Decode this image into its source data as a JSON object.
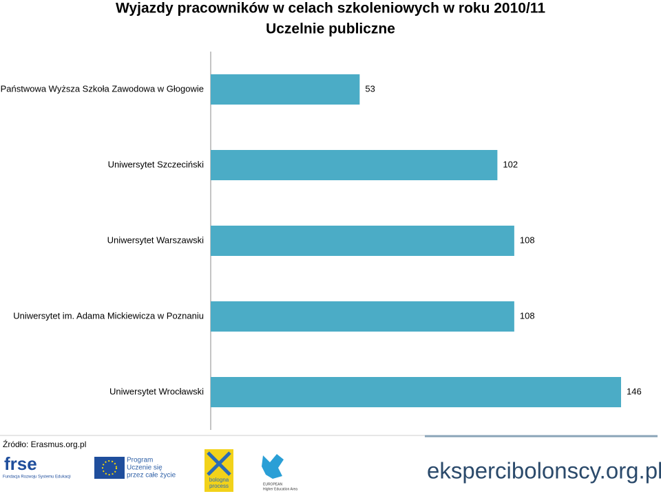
{
  "chart_data": {
    "type": "bar",
    "orientation": "horizontal",
    "title": "Wyjazdy pracowników w celach szkoleniowych w roku 2010/11",
    "subtitle": "Uczelnie publiczne",
    "categories": [
      "Państwowa Wyższa Szkoła Zawodowa w Głogowie",
      "Uniwersytet Szczeciński",
      "Uniwersytet Warszawski",
      "Uniwersytet im. Adama Mickiewicza w Poznaniu",
      "Uniwersytet Wrocławski"
    ],
    "values": [
      53,
      102,
      108,
      108,
      146
    ],
    "color": "#4bacc6",
    "source": "Źródło: Erasmus.org.pl"
  },
  "footer": {
    "frse": {
      "name": "frse",
      "caption": "Fundacja Rozwoju Systemu Edukacji"
    },
    "llp": {
      "line1": "Program",
      "line2": "Uczenie się",
      "line3": "przez całe życie"
    },
    "bologna": {
      "line1": "bologna",
      "line2": "process"
    },
    "ehea": {
      "line1": "EUROPEAN",
      "line2": "Higher Education Area"
    },
    "site": "ekspercibolonscy.org.pl"
  }
}
